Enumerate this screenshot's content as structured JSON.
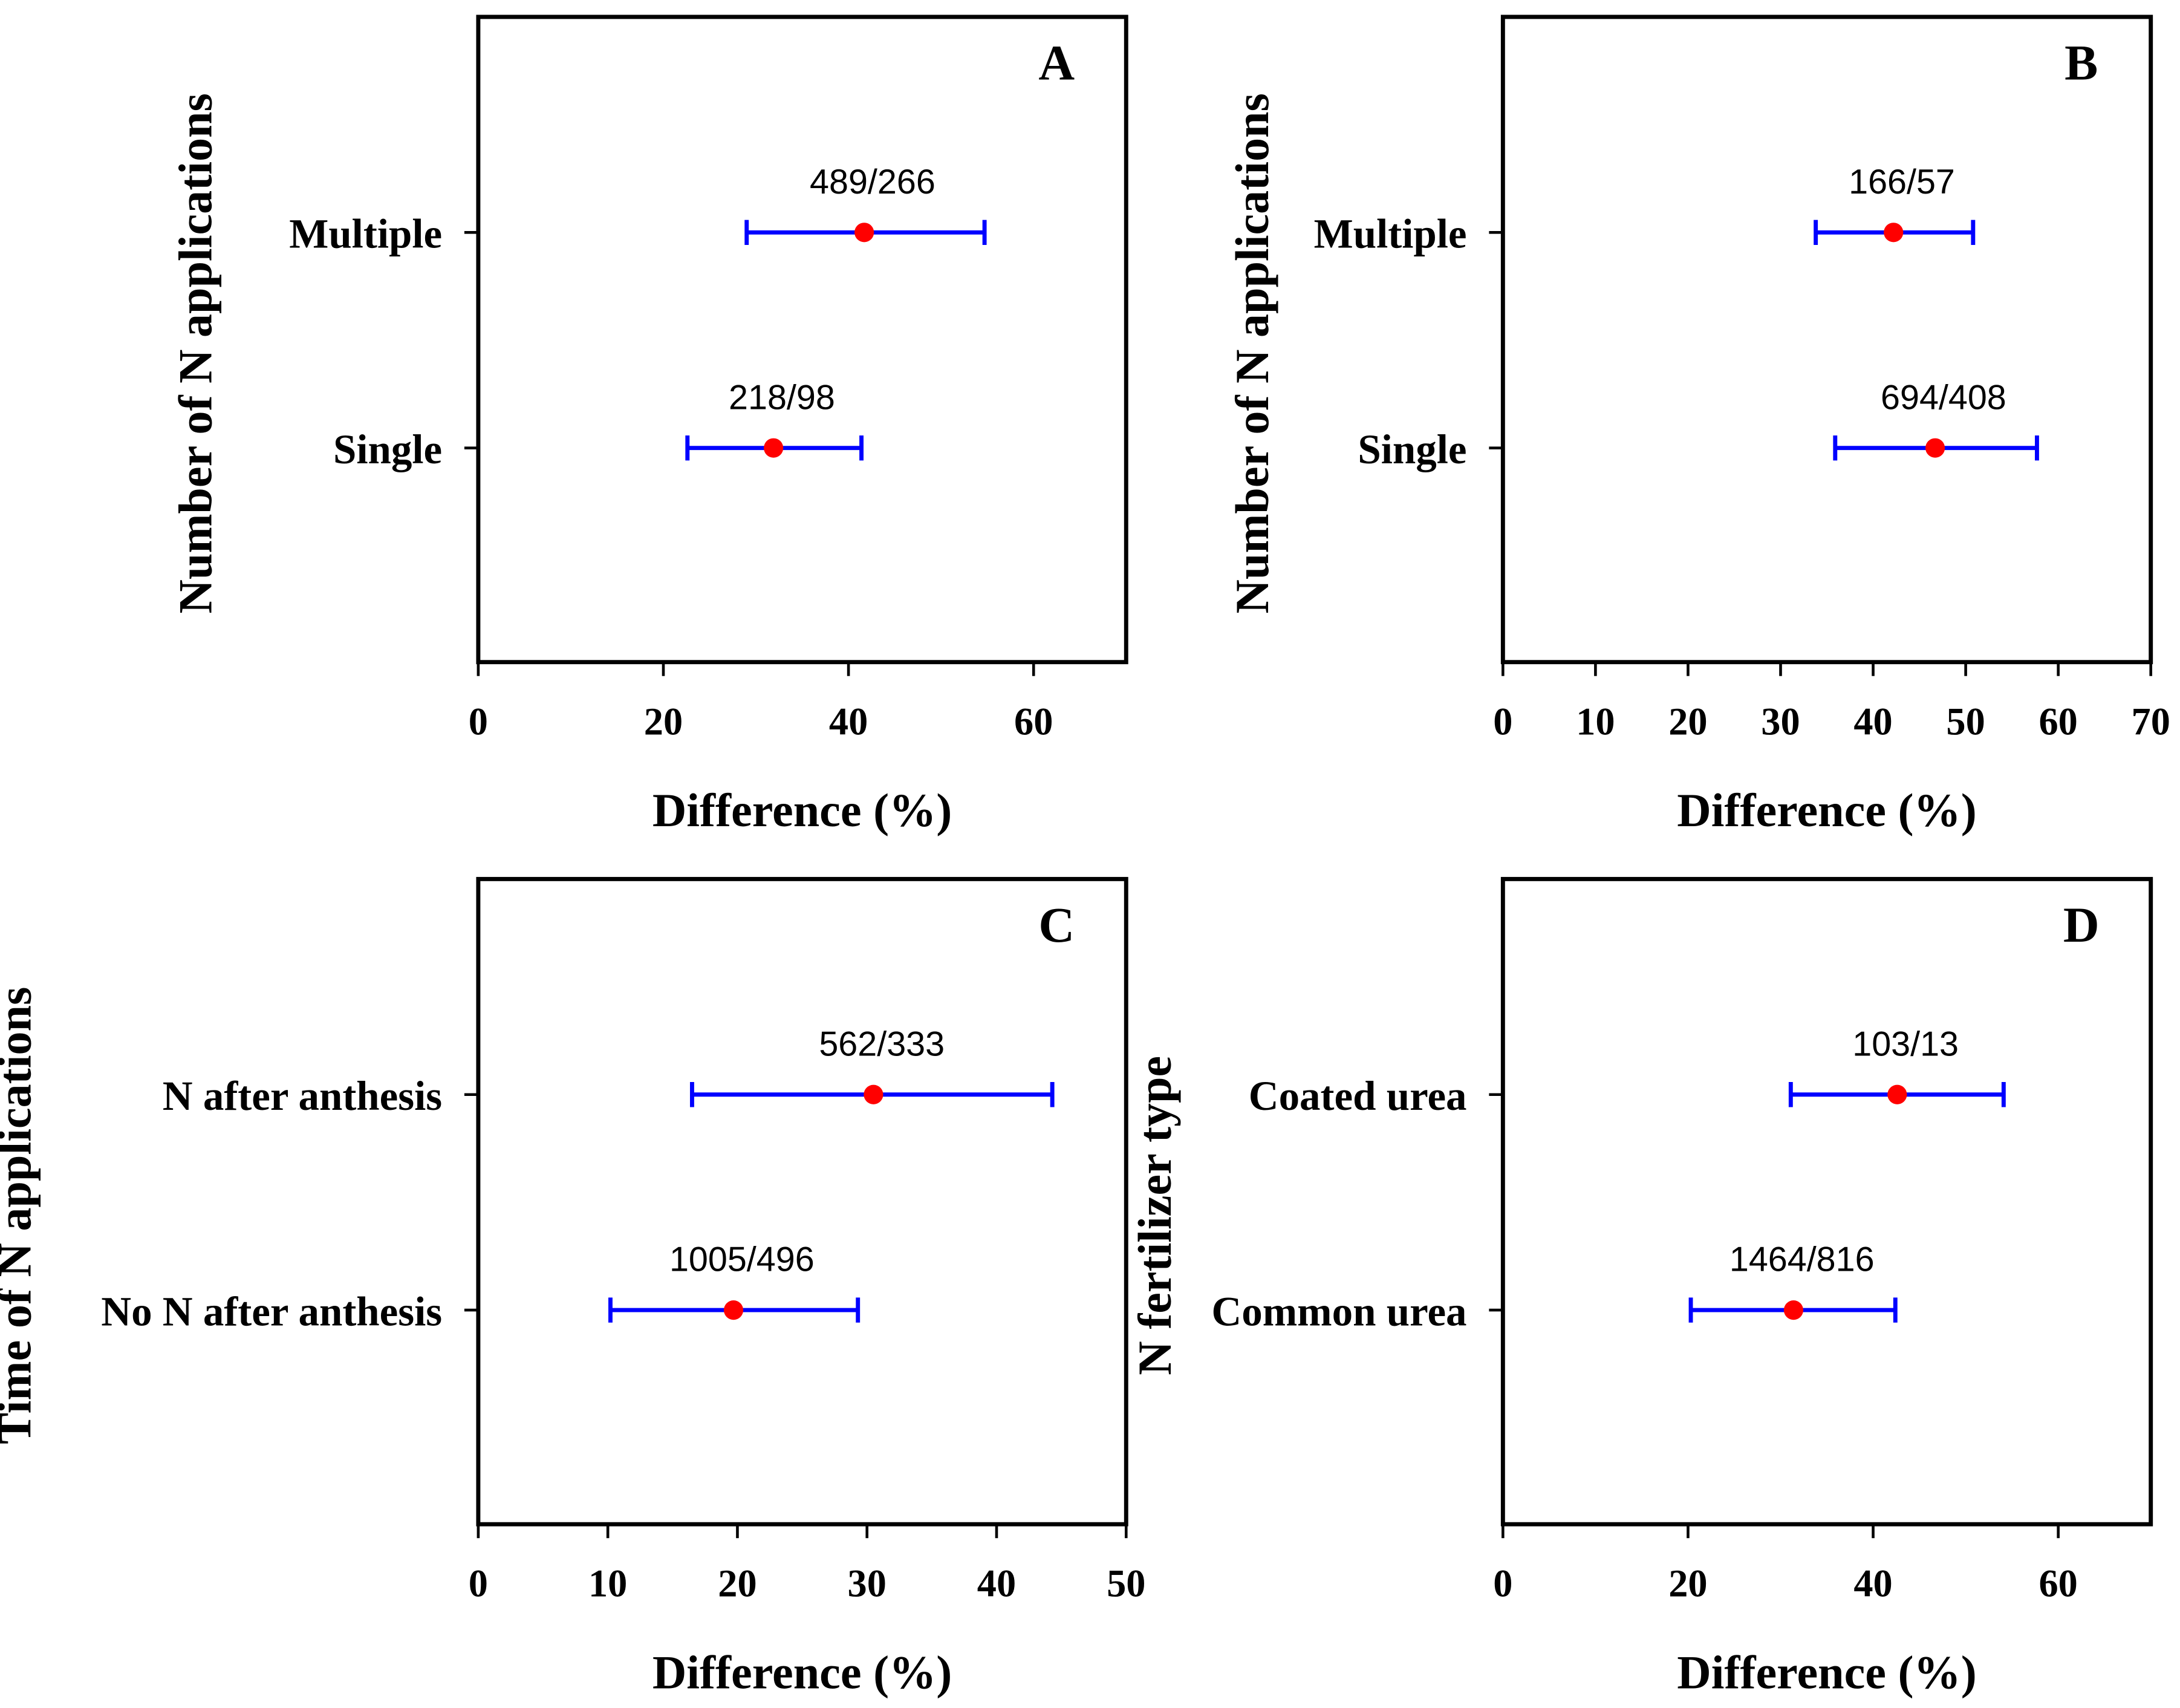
{
  "colors": {
    "mean": "#ff0000",
    "ci": "#0000ff",
    "axis": "#000000"
  },
  "chart_data": [
    {
      "type": "scatter",
      "panel": "A",
      "xlabel": "Difference (%)",
      "ylabel": "Number of N applications",
      "xlim": [
        0,
        70
      ],
      "xticks": [
        0,
        20,
        40,
        60
      ],
      "categories": [
        "Multiple",
        "Single"
      ],
      "annotations": [
        "489/266",
        "218/98"
      ],
      "mean": [
        41.7,
        31.9
      ],
      "ci_low": [
        29.0,
        22.6
      ],
      "ci_high": [
        54.7,
        41.4
      ]
    },
    {
      "type": "scatter",
      "panel": "B",
      "xlabel": "Difference (%)",
      "ylabel": "Number of N applications",
      "xlim": [
        0,
        70
      ],
      "xticks": [
        0,
        10,
        20,
        30,
        40,
        50,
        60,
        70
      ],
      "categories": [
        "Multiple",
        "Single"
      ],
      "annotations": [
        "166/57",
        "694/408"
      ],
      "mean": [
        42.2,
        46.7
      ],
      "ci_low": [
        33.8,
        35.9
      ],
      "ci_high": [
        50.8,
        57.7
      ]
    },
    {
      "type": "scatter",
      "panel": "C",
      "xlabel": "Difference (%)",
      "ylabel": "Time of N applications",
      "xlim": [
        0,
        50
      ],
      "xticks": [
        0,
        10,
        20,
        30,
        40,
        50
      ],
      "categories": [
        "N  after anthesis",
        "No N  after anthesis"
      ],
      "annotations": [
        "562/333",
        "1005/496"
      ],
      "mean": [
        30.5,
        19.7
      ],
      "ci_low": [
        16.5,
        10.2
      ],
      "ci_high": [
        44.3,
        29.3
      ]
    },
    {
      "type": "scatter",
      "panel": "D",
      "xlabel": "Difference (%)",
      "ylabel": "N fertilizer type",
      "xlim": [
        0,
        70
      ],
      "xticks": [
        0,
        20,
        40,
        60
      ],
      "categories": [
        "Coated urea",
        "Common urea"
      ],
      "annotations": [
        "103/13",
        "1464/816"
      ],
      "mean": [
        42.6,
        31.4
      ],
      "ci_low": [
        31.1,
        20.3
      ],
      "ci_high": [
        54.1,
        42.4
      ]
    }
  ]
}
